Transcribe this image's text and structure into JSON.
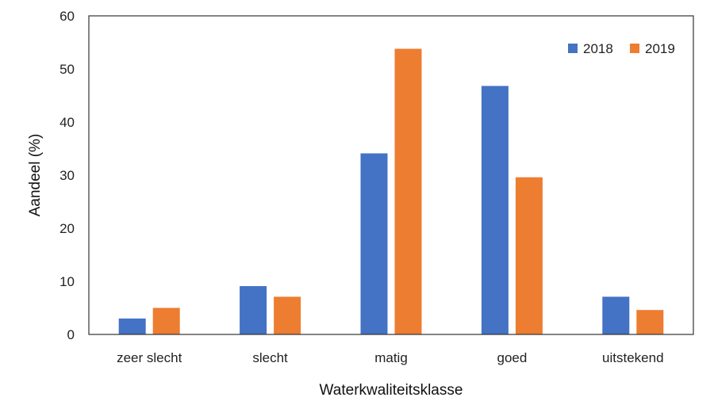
{
  "chart_data": {
    "type": "bar",
    "categories": [
      "zeer slecht",
      "slecht",
      "matig",
      "goed",
      "uitstekend"
    ],
    "series": [
      {
        "name": "2018",
        "color": "#4472C4",
        "values": [
          3,
          9.1,
          34.1,
          46.8,
          7.1
        ]
      },
      {
        "name": "2019",
        "color": "#ED7D31",
        "values": [
          5,
          7.1,
          53.8,
          29.6,
          4.6
        ]
      }
    ],
    "xlabel": "Waterkwaliteitsklasse",
    "ylabel": "Aandeel (%)",
    "ylim": [
      0,
      60
    ],
    "yticks": [
      "0",
      "10",
      "20",
      "30",
      "40",
      "50",
      "60"
    ],
    "grid": false,
    "legend": "top-right"
  }
}
